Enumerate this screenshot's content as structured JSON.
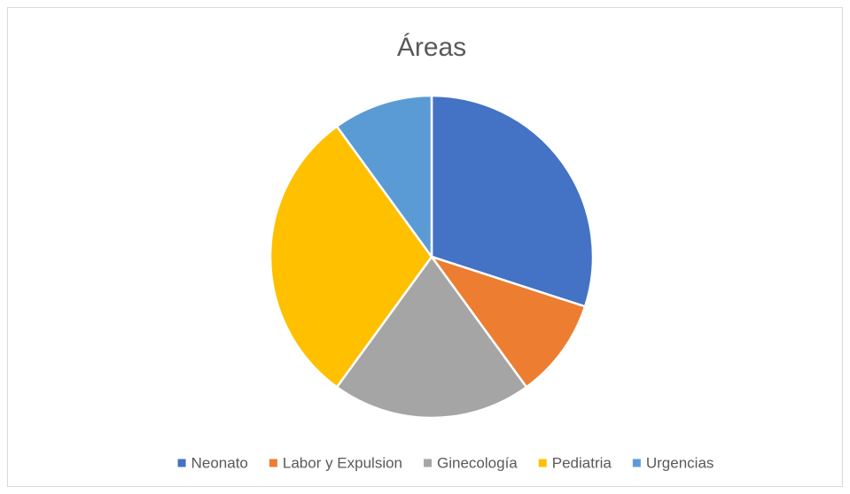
{
  "chart_data": {
    "type": "pie",
    "title": "Áreas",
    "categories": [
      "Neonato",
      "Labor y Expulsion",
      "Ginecología",
      "Pediatria",
      "Urgencias"
    ],
    "values": [
      30,
      10,
      20,
      30,
      10
    ],
    "colors": [
      "#4472c4",
      "#ed7d31",
      "#a5a5a5",
      "#ffc000",
      "#5b9bd5"
    ],
    "legend": "bottom"
  }
}
